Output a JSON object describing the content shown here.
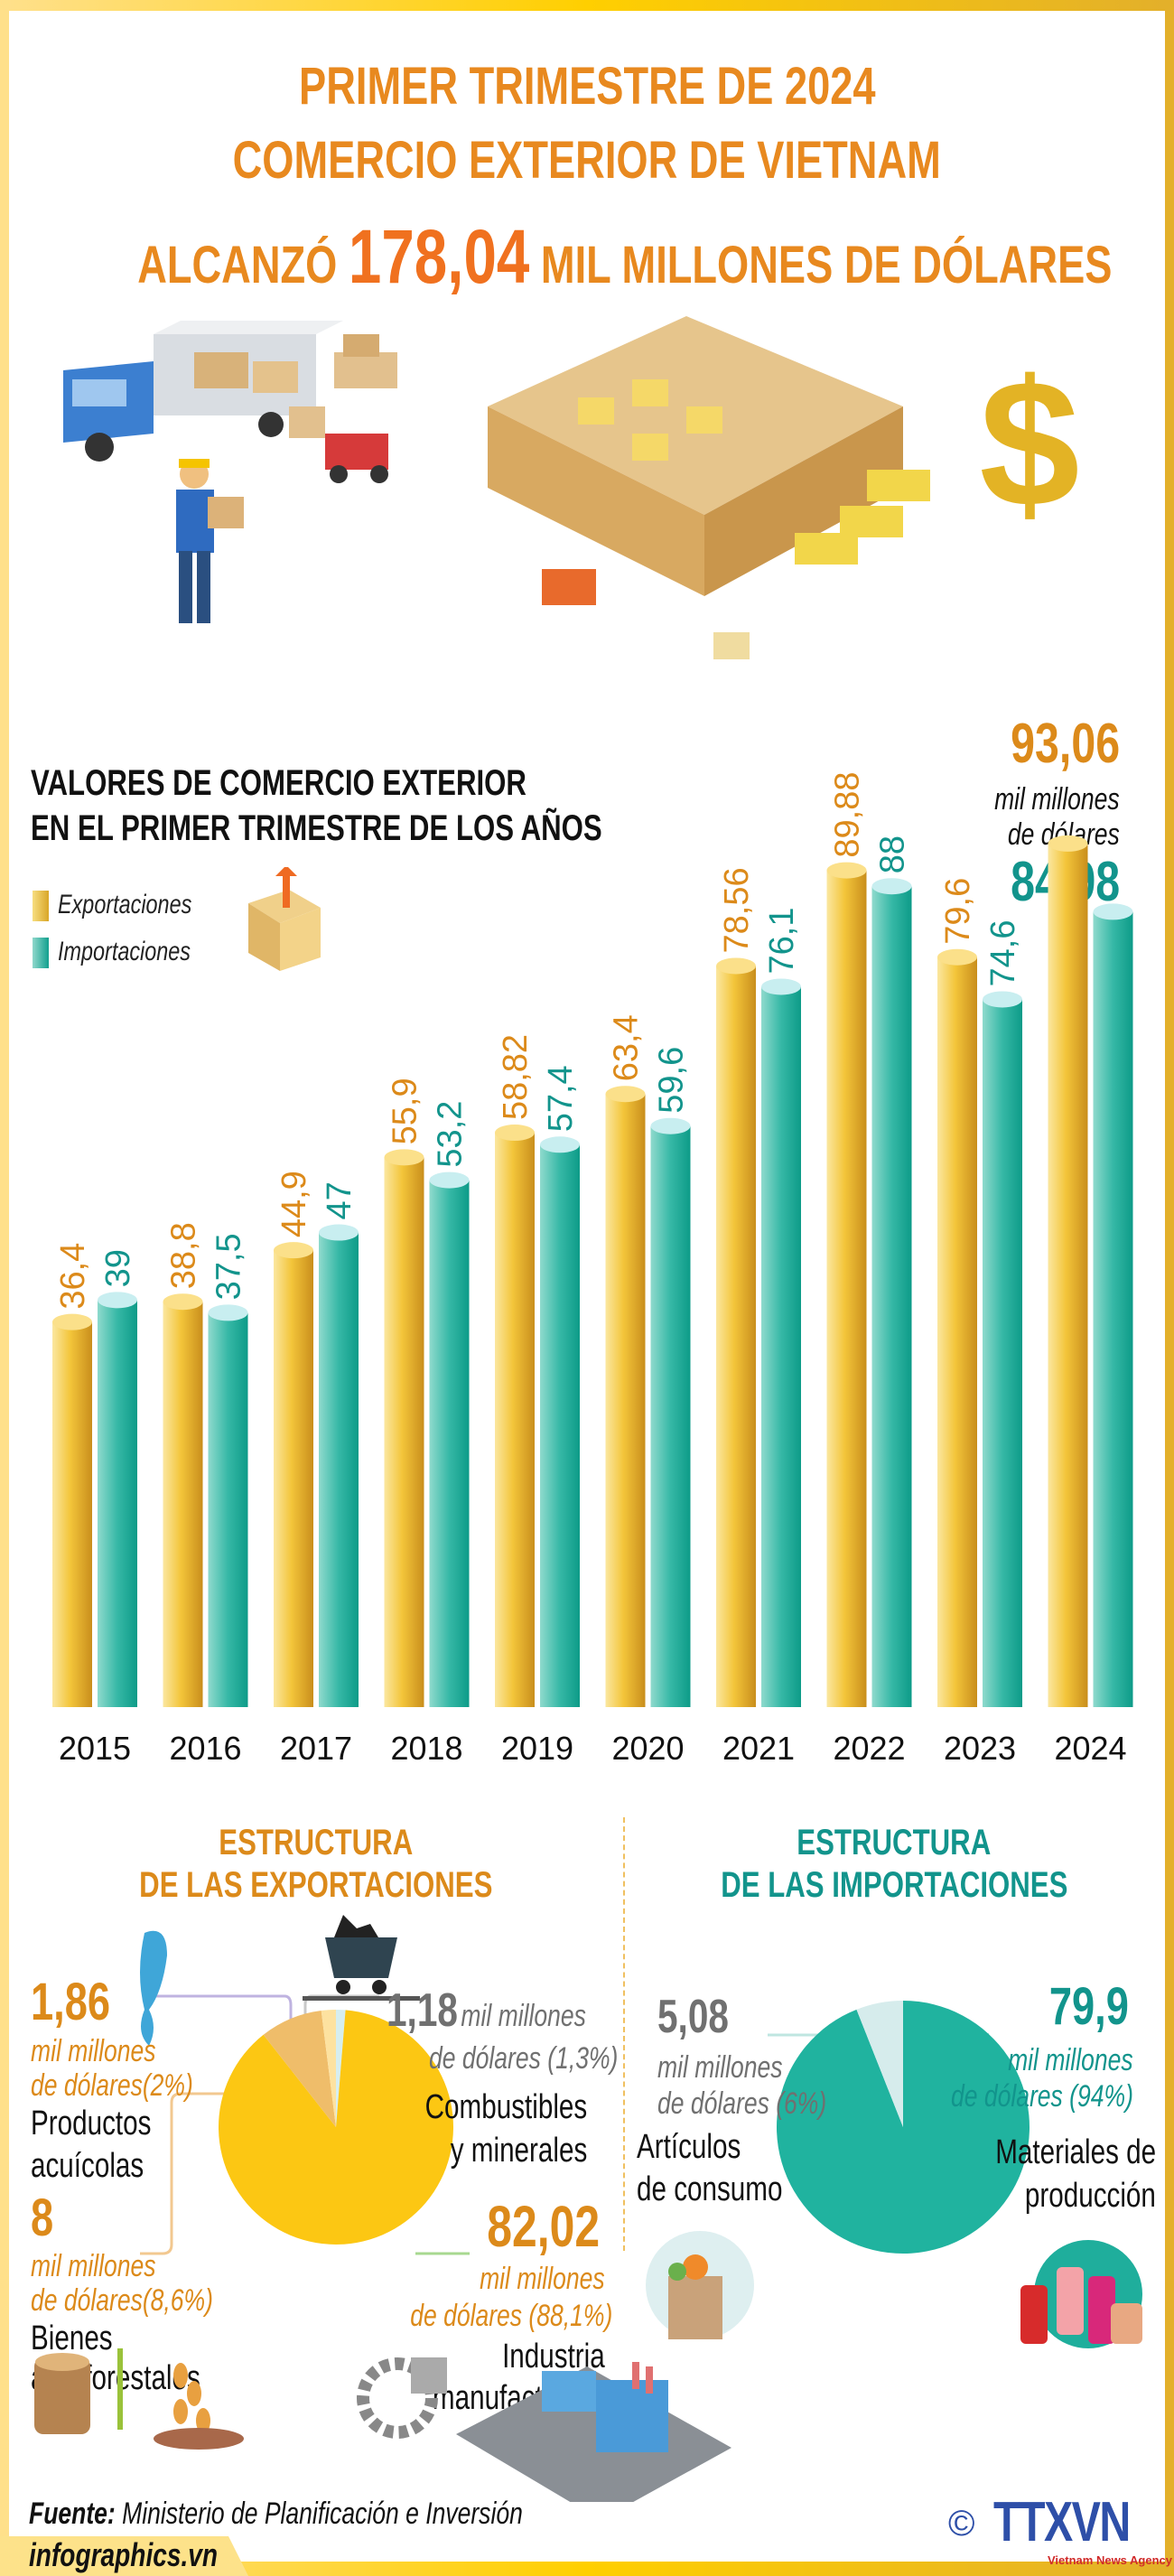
{
  "header": {
    "line1": "PRIMER TRIMESTRE DE 2024",
    "line2": "COMERCIO EXTERIOR DE VIETNAM",
    "line3_pre": "ALCANZÓ",
    "line3_value": "178,04",
    "line3_post": "MIL MILLONES DE DÓLARES"
  },
  "chart_data": {
    "type": "bar",
    "title": "VALORES DE COMERCIO EXTERIOR EN EL PRIMER TRIMESTRE DE LOS AÑOS",
    "title_line1": "VALORES DE COMERCIO EXTERIOR",
    "title_line2": "EN EL PRIMER TRIMESTRE DE LOS AÑOS",
    "categories": [
      "2015",
      "2016",
      "2017",
      "2018",
      "2019",
      "2020",
      "2021",
      "2022",
      "2023",
      "2024"
    ],
    "series": [
      {
        "name": "Exportaciones",
        "color": "#f2c230",
        "values": [
          36.4,
          38.8,
          44.9,
          55.9,
          58.82,
          63.4,
          78.56,
          89.88,
          79.6,
          93.06
        ],
        "labels": [
          "36,4",
          "38,8",
          "44,9",
          "55,9",
          "58,82",
          "63,4",
          "78,56",
          "89,88",
          "79,6",
          "93,06"
        ]
      },
      {
        "name": "Importaciones",
        "color": "#2fb9a8",
        "values": [
          39,
          37.5,
          47,
          53.2,
          57.4,
          59.6,
          76.1,
          88,
          74.6,
          84.98
        ],
        "labels": [
          "39",
          "37,5",
          "47",
          "53,2",
          "57,4",
          "59,6",
          "76,1",
          "88",
          "74,6",
          "84,98"
        ]
      }
    ],
    "unit_line1": "mil millones",
    "unit_line2": "de dólares",
    "grid": false,
    "legend": "top-left"
  },
  "exports": {
    "title1": "ESTRUCTURA",
    "title2": "DE LAS EXPORTACIONES",
    "slices": [
      {
        "name": "Combustibles y minerales",
        "label1": "Combustibles",
        "label2": "y minerales",
        "value": "1,18",
        "unit": "mil millones",
        "unit2": "de dólares (1,3%)",
        "pct": 1.3,
        "color": "#d6eef0"
      },
      {
        "name": "Industria manufacturera",
        "label1": "Industria",
        "label2": "manufacturera",
        "value": "82,02",
        "unit": "mil millones",
        "unit2": "de dólares (88,1%)",
        "pct": 88.1,
        "color": "#fcc713"
      },
      {
        "name": "Bienes agroforestales",
        "label1": "Bienes",
        "label2": "agroforestales",
        "value": "8",
        "unit": "mil millones",
        "unit2": "de dólares(8,6%)",
        "pct": 8.6,
        "color": "#efbd6a"
      },
      {
        "name": "Productos acuícolas",
        "label1": "Productos",
        "label2": "acuícolas",
        "value": "1,86",
        "unit": "mil millones",
        "unit2": "de dólares(2%)",
        "pct": 2,
        "color": "#fde2a0"
      }
    ]
  },
  "imports": {
    "title1": "ESTRUCTURA",
    "title2": "DE LAS IMPORTACIONES",
    "slices": [
      {
        "name": "Materiales de producción",
        "label1": "Materiales de",
        "label2": "producción",
        "value": "79,9",
        "unit": "mil millones",
        "unit2": "de dólares (94%)",
        "pct": 94,
        "color": "#20b39f"
      },
      {
        "name": "Artículos de consumo",
        "label1": "Artículos",
        "label2": "de consumo",
        "value": "5,08",
        "unit": "mil millones",
        "unit2": "de dólares (6%)",
        "pct": 6,
        "color": "#d6ecec"
      }
    ]
  },
  "footer": {
    "source_label": "Fuente:",
    "source_text": "Ministerio de Planificación e Inversión",
    "site": "infographics.vn",
    "logo_text": "TTXVN",
    "logo_sub": "Vietnam News Agency",
    "copyright": "©"
  }
}
